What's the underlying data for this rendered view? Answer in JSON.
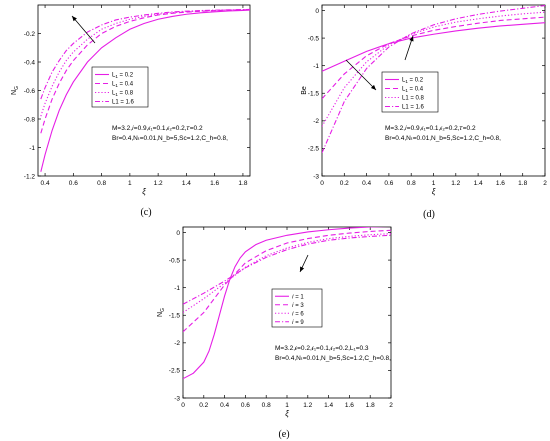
{
  "colors": {
    "curve": "#e61ee6",
    "axis": "#000000",
    "background": "#ffffff"
  },
  "chart_data": [
    {
      "type": "line",
      "caption": "(c)",
      "ylabel_main": "N",
      "ylabel_sub": "G",
      "xlabel": "ξ",
      "xlim": [
        0.35,
        1.85
      ],
      "ylim": [
        -1.2,
        0
      ],
      "xticks": [
        {
          "v": 0.4,
          "t": "0.4"
        },
        {
          "v": 0.6,
          "t": "0.6"
        },
        {
          "v": 0.8,
          "t": "0.8"
        },
        {
          "v": 1,
          "t": "1"
        },
        {
          "v": 1.2,
          "t": "1.2"
        },
        {
          "v": 1.4,
          "t": "1.4"
        },
        {
          "v": 1.6,
          "t": "1.6"
        },
        {
          "v": 1.8,
          "t": "1.8"
        }
      ],
      "yticks": [
        {
          "v": -1.2,
          "t": "-1.2"
        },
        {
          "v": -1,
          "t": "-1"
        },
        {
          "v": -0.8,
          "t": "-0.8"
        },
        {
          "v": -0.6,
          "t": "-0.6"
        },
        {
          "v": -0.4,
          "t": "-0.4"
        },
        {
          "v": -0.2,
          "t": "-0.2"
        }
      ],
      "legend": [
        {
          "main": "L",
          "sub": "1",
          "tail": " = 0.2"
        },
        {
          "main": "L",
          "sub": "1",
          "tail": " = 0.4"
        },
        {
          "main": "L",
          "sub": "1",
          "tail": " = 0.8"
        },
        {
          "main": "L1 = 1.6",
          "sub": "",
          "tail": ""
        }
      ],
      "annotation_lines": [
        "M=3.2,𝑖=0.9,𝜖₁=0.1,𝜖₂=0.2,𝜏=0.2",
        "Br=0.4,Nₜ=0.01,N_b=5,Sc=1.2,C_h=0.8,"
      ],
      "series": [
        {
          "dash": "",
          "x": [
            0.37,
            0.4,
            0.45,
            0.5,
            0.55,
            0.6,
            0.7,
            0.8,
            0.9,
            1.0,
            1.1,
            1.2,
            1.3,
            1.4,
            1.5,
            1.6,
            1.7,
            1.8,
            1.85
          ],
          "y": [
            -1.17,
            -1.05,
            -0.88,
            -0.74,
            -0.63,
            -0.54,
            -0.4,
            -0.3,
            -0.23,
            -0.17,
            -0.13,
            -0.1,
            -0.08,
            -0.065,
            -0.055,
            -0.048,
            -0.042,
            -0.038,
            -0.036
          ]
        },
        {
          "dash": "5,3",
          "x": [
            0.37,
            0.4,
            0.45,
            0.5,
            0.55,
            0.6,
            0.7,
            0.8,
            0.9,
            1.0,
            1.1,
            1.2,
            1.3,
            1.4,
            1.5,
            1.6,
            1.7,
            1.8,
            1.85
          ],
          "y": [
            -0.9,
            -0.8,
            -0.66,
            -0.55,
            -0.46,
            -0.39,
            -0.28,
            -0.2,
            -0.15,
            -0.115,
            -0.09,
            -0.07,
            -0.058,
            -0.05,
            -0.044,
            -0.04,
            -0.036,
            -0.034,
            -0.033
          ]
        },
        {
          "dash": "1.2,2",
          "x": [
            0.37,
            0.4,
            0.45,
            0.5,
            0.55,
            0.6,
            0.7,
            0.8,
            0.9,
            1.0,
            1.1,
            1.2,
            1.3,
            1.4,
            1.5,
            1.6,
            1.7,
            1.8,
            1.85
          ],
          "y": [
            -0.78,
            -0.69,
            -0.57,
            -0.47,
            -0.39,
            -0.33,
            -0.24,
            -0.17,
            -0.13,
            -0.1,
            -0.08,
            -0.065,
            -0.054,
            -0.047,
            -0.042,
            -0.038,
            -0.035,
            -0.033,
            -0.032
          ]
        },
        {
          "dash": "5,2,1.2,2",
          "x": [
            0.37,
            0.4,
            0.45,
            0.5,
            0.55,
            0.6,
            0.7,
            0.8,
            0.9,
            1.0,
            1.1,
            1.2,
            1.3,
            1.4,
            1.5,
            1.6,
            1.7,
            1.8,
            1.85
          ],
          "y": [
            -0.66,
            -0.58,
            -0.47,
            -0.39,
            -0.32,
            -0.27,
            -0.19,
            -0.14,
            -0.105,
            -0.085,
            -0.07,
            -0.058,
            -0.049,
            -0.043,
            -0.039,
            -0.036,
            -0.034,
            -0.032,
            -0.031
          ]
        }
      ]
    },
    {
      "type": "line",
      "caption": "(d)",
      "ylabel_main": "Be",
      "ylabel_sub": "",
      "xlabel": "ξ",
      "xlim": [
        0,
        2
      ],
      "ylim": [
        -3,
        0.1
      ],
      "xticks": [
        {
          "v": 0,
          "t": "0"
        },
        {
          "v": 0.2,
          "t": "0.2"
        },
        {
          "v": 0.4,
          "t": "0.4"
        },
        {
          "v": 0.6,
          "t": "0.6"
        },
        {
          "v": 0.8,
          "t": "0.8"
        },
        {
          "v": 1,
          "t": "1"
        },
        {
          "v": 1.2,
          "t": "1.2"
        },
        {
          "v": 1.4,
          "t": "1.4"
        },
        {
          "v": 1.6,
          "t": "1.6"
        },
        {
          "v": 1.8,
          "t": "1.8"
        },
        {
          "v": 2,
          "t": "2"
        }
      ],
      "yticks": [
        {
          "v": -3,
          "t": "-3"
        },
        {
          "v": -2.5,
          "t": "-2.5"
        },
        {
          "v": -2,
          "t": "-2"
        },
        {
          "v": -1.5,
          "t": "-1.5"
        },
        {
          "v": -1,
          "t": "-1"
        },
        {
          "v": -0.5,
          "t": "-0.5"
        },
        {
          "v": 0,
          "t": "0"
        }
      ],
      "legend": [
        {
          "main": "L",
          "sub": "1",
          "tail": " = 0.2"
        },
        {
          "main": "L",
          "sub": "1",
          "tail": " = 0.4"
        },
        {
          "main": "L1 = 0.8",
          "sub": "",
          "tail": ""
        },
        {
          "main": "L1 = 1.6",
          "sub": "",
          "tail": ""
        }
      ],
      "annotation_lines": [
        "M=3.2,𝑖=0.9,𝜖₁=0.1,𝜖₂=0.2,𝜏=0.2",
        "Br=0.4,Nₜ=0.01,N_b=5,Sc=1.2,C_h=0.8,"
      ],
      "series": [
        {
          "dash": "",
          "x": [
            0,
            0.2,
            0.4,
            0.6,
            0.8,
            1.0,
            1.2,
            1.4,
            1.6,
            1.8,
            2.0
          ],
          "y": [
            -1.1,
            -0.92,
            -0.74,
            -0.6,
            -0.5,
            -0.43,
            -0.37,
            -0.32,
            -0.28,
            -0.25,
            -0.22
          ]
        },
        {
          "dash": "5,3",
          "x": [
            0,
            0.2,
            0.4,
            0.6,
            0.8,
            1.0,
            1.2,
            1.4,
            1.6,
            1.8,
            2.0
          ],
          "y": [
            -1.6,
            -1.15,
            -0.82,
            -0.6,
            -0.46,
            -0.36,
            -0.29,
            -0.23,
            -0.18,
            -0.15,
            -0.12
          ]
        },
        {
          "dash": "1.2,2",
          "x": [
            0,
            0.2,
            0.4,
            0.6,
            0.8,
            1.0,
            1.2,
            1.4,
            1.6,
            1.8,
            2.0
          ],
          "y": [
            -2.1,
            -1.4,
            -0.93,
            -0.62,
            -0.43,
            -0.3,
            -0.21,
            -0.15,
            -0.1,
            -0.06,
            -0.03
          ]
        },
        {
          "dash": "5,2,1.2,2",
          "x": [
            0,
            0.2,
            0.4,
            0.6,
            0.8,
            1.0,
            1.2,
            1.4,
            1.6,
            1.8,
            2.0
          ],
          "y": [
            -2.58,
            -1.65,
            -1.05,
            -0.66,
            -0.42,
            -0.26,
            -0.15,
            -0.07,
            -0.01,
            0.04,
            0.09
          ]
        }
      ]
    },
    {
      "type": "line",
      "caption": "(e)",
      "ylabel_main": "N",
      "ylabel_sub": "G",
      "xlabel": "ξ",
      "xlim": [
        0,
        2
      ],
      "ylim": [
        -3,
        0.1
      ],
      "xticks": [
        {
          "v": 0,
          "t": "0"
        },
        {
          "v": 0.2,
          "t": "0.2"
        },
        {
          "v": 0.4,
          "t": "0.4"
        },
        {
          "v": 0.6,
          "t": "0.6"
        },
        {
          "v": 0.8,
          "t": "0.8"
        },
        {
          "v": 1,
          "t": "1"
        },
        {
          "v": 1.2,
          "t": "1.2"
        },
        {
          "v": 1.4,
          "t": "1.4"
        },
        {
          "v": 1.6,
          "t": "1.6"
        },
        {
          "v": 1.8,
          "t": "1.8"
        },
        {
          "v": 2,
          "t": "2"
        }
      ],
      "yticks": [
        {
          "v": -3,
          "t": "-3"
        },
        {
          "v": -2.5,
          "t": "-2.5"
        },
        {
          "v": -2,
          "t": "-2"
        },
        {
          "v": -1.5,
          "t": "-1.5"
        },
        {
          "v": -1,
          "t": "-1"
        },
        {
          "v": -0.5,
          "t": "-0.5"
        },
        {
          "v": 0,
          "t": "0"
        }
      ],
      "legend": [
        {
          "main": "𝑖 = 1",
          "sub": "",
          "tail": ""
        },
        {
          "main": "𝑖 = 3",
          "sub": "",
          "tail": ""
        },
        {
          "main": "𝑖 = 6",
          "sub": "",
          "tail": ""
        },
        {
          "main": "𝑖 = 9",
          "sub": "",
          "tail": ""
        }
      ],
      "annotation_lines": [
        "M=3.2,𝜖=0.2,𝜖₁=0.1,𝜖₂=0.2,L₁=0.3",
        "Br=0.4,Nₜ=0.01,N_b=5,Sc=1.2,C_h=0.8,"
      ],
      "series": [
        {
          "dash": "",
          "x": [
            0,
            0.1,
            0.2,
            0.25,
            0.3,
            0.35,
            0.4,
            0.45,
            0.5,
            0.55,
            0.6,
            0.7,
            0.8,
            1.0,
            1.2,
            1.4,
            1.6,
            1.8,
            2.0
          ],
          "y": [
            -2.65,
            -2.55,
            -2.35,
            -2.15,
            -1.85,
            -1.5,
            -1.15,
            -0.85,
            -0.62,
            -0.46,
            -0.35,
            -0.22,
            -0.14,
            -0.05,
            0.01,
            0.05,
            0.08,
            0.1,
            0.11
          ]
        },
        {
          "dash": "5,3",
          "x": [
            0,
            0.2,
            0.4,
            0.6,
            0.8,
            1.0,
            1.2,
            1.4,
            1.6,
            1.8,
            2.0
          ],
          "y": [
            -1.8,
            -1.45,
            -0.95,
            -0.55,
            -0.33,
            -0.19,
            -0.11,
            -0.05,
            -0.01,
            0.02,
            0.04
          ]
        },
        {
          "dash": "1.2,2",
          "x": [
            0,
            0.2,
            0.4,
            0.6,
            0.8,
            1.0,
            1.2,
            1.4,
            1.6,
            1.8,
            2.0
          ],
          "y": [
            -1.45,
            -1.2,
            -0.92,
            -0.63,
            -0.42,
            -0.28,
            -0.18,
            -0.11,
            -0.07,
            -0.04,
            -0.02
          ]
        },
        {
          "dash": "5,2,1.2,2",
          "x": [
            0,
            0.2,
            0.4,
            0.6,
            0.8,
            1.0,
            1.2,
            1.4,
            1.6,
            1.8,
            2.0
          ],
          "y": [
            -1.3,
            -1.1,
            -0.88,
            -0.64,
            -0.45,
            -0.31,
            -0.21,
            -0.14,
            -0.1,
            -0.07,
            -0.05
          ]
        }
      ]
    }
  ]
}
